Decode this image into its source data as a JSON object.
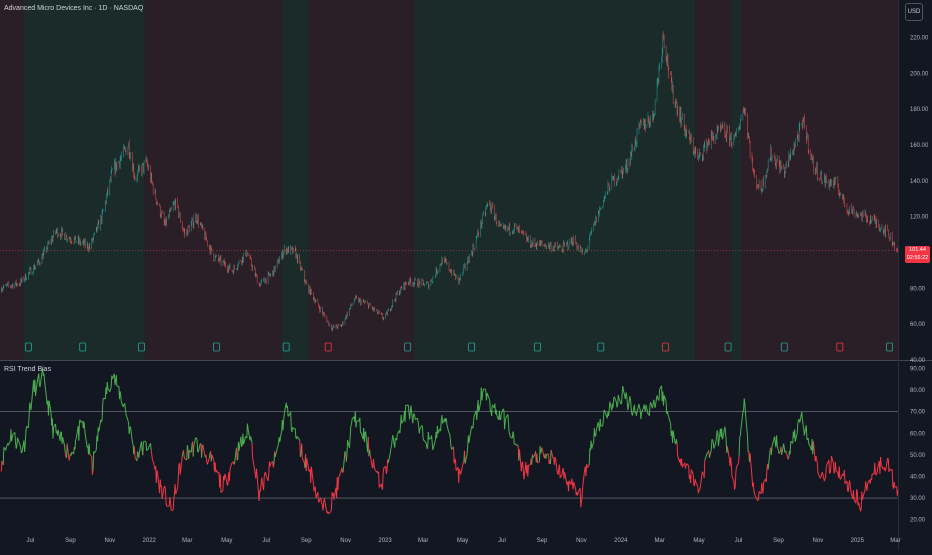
{
  "header": {
    "title": "Advanced Micro Devices Inc · 1D · NASDAQ",
    "currency": "USD"
  },
  "price_tag": {
    "value": "101.44",
    "countdown": "02:56:22",
    "color": "#f23645"
  },
  "colors": {
    "bull_bg": "#1a2b2a",
    "bear_bg": "#2a1e27",
    "rsi_up": "#4caf50",
    "rsi_down": "#f23645",
    "candle_up": "#26a69a",
    "candle_down": "#ef5350"
  },
  "indicator": {
    "title": "RSI Trend Bias"
  },
  "chart_data": [
    {
      "type": "candlestick",
      "title": "",
      "x_ticks": [
        "Jul",
        "Sep",
        "Nov",
        "2022",
        "Mar",
        "May",
        "Jul",
        "Sep",
        "Nov",
        "2023",
        "Mar",
        "May",
        "Jul",
        "Sep",
        "Nov",
        "2024",
        "Mar",
        "May",
        "Jul",
        "Sep",
        "Nov",
        "2025",
        "Mar"
      ],
      "y_ticks": [
        40,
        60,
        80,
        100,
        120,
        140,
        160,
        180,
        200,
        220
      ],
      "ylim": [
        40,
        232
      ],
      "x_range": [
        "2021-05-15",
        "2025-03-05"
      ],
      "anchors": [
        [
          "2021-05-15",
          80
        ],
        [
          "2021-06-15",
          83
        ],
        [
          "2021-07-15",
          95
        ],
        [
          "2021-08-10",
          112
        ],
        [
          "2021-09-01",
          108
        ],
        [
          "2021-10-01",
          103
        ],
        [
          "2021-10-20",
          120
        ],
        [
          "2021-11-05",
          145
        ],
        [
          "2021-11-30",
          160
        ],
        [
          "2021-12-10",
          142
        ],
        [
          "2021-12-28",
          150
        ],
        [
          "2022-01-10",
          132
        ],
        [
          "2022-01-25",
          115
        ],
        [
          "2022-02-10",
          128
        ],
        [
          "2022-02-25",
          110
        ],
        [
          "2022-03-15",
          120
        ],
        [
          "2022-04-10",
          98
        ],
        [
          "2022-05-10",
          90
        ],
        [
          "2022-06-01",
          100
        ],
        [
          "2022-06-20",
          82
        ],
        [
          "2022-07-10",
          88
        ],
        [
          "2022-07-30",
          102
        ],
        [
          "2022-08-15",
          100
        ],
        [
          "2022-09-01",
          82
        ],
        [
          "2022-09-25",
          67
        ],
        [
          "2022-10-10",
          58
        ],
        [
          "2022-10-25",
          59
        ],
        [
          "2022-11-15",
          74
        ],
        [
          "2022-12-05",
          71
        ],
        [
          "2022-12-31",
          63
        ],
        [
          "2023-01-20",
          77
        ],
        [
          "2023-02-05",
          84
        ],
        [
          "2023-03-10",
          82
        ],
        [
          "2023-03-31",
          96
        ],
        [
          "2023-04-25",
          84
        ],
        [
          "2023-05-15",
          100
        ],
        [
          "2023-06-10",
          128
        ],
        [
          "2023-06-30",
          112
        ],
        [
          "2023-07-20",
          114
        ],
        [
          "2023-08-15",
          105
        ],
        [
          "2023-09-10",
          104
        ],
        [
          "2023-10-01",
          102
        ],
        [
          "2023-10-20",
          107
        ],
        [
          "2023-11-05",
          98
        ],
        [
          "2023-11-25",
          120
        ],
        [
          "2023-12-15",
          138
        ],
        [
          "2024-01-10",
          148
        ],
        [
          "2024-01-31",
          170
        ],
        [
          "2024-02-20",
          176
        ],
        [
          "2024-03-07",
          222
        ],
        [
          "2024-03-20",
          190
        ],
        [
          "2024-04-10",
          168
        ],
        [
          "2024-04-30",
          152
        ],
        [
          "2024-05-15",
          162
        ],
        [
          "2024-06-05",
          168
        ],
        [
          "2024-06-25",
          162
        ],
        [
          "2024-07-10",
          182
        ],
        [
          "2024-07-25",
          142
        ],
        [
          "2024-08-05",
          135
        ],
        [
          "2024-08-20",
          155
        ],
        [
          "2024-09-10",
          145
        ],
        [
          "2024-10-01",
          165
        ],
        [
          "2024-10-10",
          172
        ],
        [
          "2024-10-25",
          148
        ],
        [
          "2024-11-10",
          140
        ],
        [
          "2024-11-30",
          138
        ],
        [
          "2024-12-15",
          125
        ],
        [
          "2025-01-05",
          121
        ],
        [
          "2025-01-25",
          118
        ],
        [
          "2025-02-15",
          112
        ],
        [
          "2025-03-05",
          101
        ]
      ],
      "backgrounds": [
        [
          "2021-05-15",
          "2021-06-20",
          "bear"
        ],
        [
          "2021-06-20",
          "2021-12-25",
          "bull"
        ],
        [
          "2021-12-25",
          "2022-07-25",
          "bear"
        ],
        [
          "2022-07-25",
          "2022-09-05",
          "bull"
        ],
        [
          "2022-09-05",
          "2023-02-15",
          "bear"
        ],
        [
          "2023-02-15",
          "2024-04-25",
          "bull"
        ],
        [
          "2024-04-25",
          "2024-06-20",
          "bear"
        ],
        [
          "2024-06-20",
          "2024-07-05",
          "bull"
        ],
        [
          "2024-07-05",
          "2025-03-05",
          "bear"
        ]
      ],
      "markers": [
        [
          "2021-06-28",
          "bull"
        ],
        [
          "2021-09-20",
          "bull"
        ],
        [
          "2021-12-20",
          "bull"
        ],
        [
          "2022-04-15",
          "bull"
        ],
        [
          "2022-08-01",
          "bull"
        ],
        [
          "2022-10-05",
          "bear"
        ],
        [
          "2023-02-05",
          "bull"
        ],
        [
          "2023-05-15",
          "bull"
        ],
        [
          "2023-08-25",
          "bull"
        ],
        [
          "2023-12-01",
          "bull"
        ],
        [
          "2024-03-10",
          "bear"
        ],
        [
          "2024-06-15",
          "bull"
        ],
        [
          "2024-09-10",
          "bull"
        ],
        [
          "2024-12-05",
          "bear"
        ],
        [
          "2025-02-20",
          "bull"
        ]
      ]
    },
    {
      "type": "line",
      "title": "RSI Trend Bias",
      "y_ticks": [
        20,
        30,
        40,
        50,
        60,
        70,
        80,
        90
      ],
      "ylim": [
        18,
        93
      ],
      "levels": [
        30,
        70
      ],
      "anchors": [
        [
          "2021-05-15",
          45
        ],
        [
          "2021-06-01",
          60
        ],
        [
          "2021-06-20",
          52
        ],
        [
          "2021-07-05",
          80
        ],
        [
          "2021-07-20",
          86
        ],
        [
          "2021-08-05",
          62
        ],
        [
          "2021-09-01",
          50
        ],
        [
          "2021-09-20",
          65
        ],
        [
          "2021-10-05",
          44
        ],
        [
          "2021-10-25",
          78
        ],
        [
          "2021-11-05",
          87
        ],
        [
          "2021-11-25",
          72
        ],
        [
          "2021-12-10",
          50
        ],
        [
          "2021-12-31",
          55
        ],
        [
          "2022-01-15",
          38
        ],
        [
          "2022-02-05",
          24
        ],
        [
          "2022-02-20",
          48
        ],
        [
          "2022-03-15",
          55
        ],
        [
          "2022-04-05",
          48
        ],
        [
          "2022-04-25",
          35
        ],
        [
          "2022-05-15",
          50
        ],
        [
          "2022-06-05",
          62
        ],
        [
          "2022-06-20",
          33
        ],
        [
          "2022-07-15",
          48
        ],
        [
          "2022-08-01",
          72
        ],
        [
          "2022-08-20",
          55
        ],
        [
          "2022-09-10",
          40
        ],
        [
          "2022-09-25",
          25
        ],
        [
          "2022-10-10",
          28
        ],
        [
          "2022-10-25",
          40
        ],
        [
          "2022-11-15",
          68
        ],
        [
          "2022-12-05",
          55
        ],
        [
          "2022-12-25",
          35
        ],
        [
          "2023-01-15",
          57
        ],
        [
          "2023-02-05",
          72
        ],
        [
          "2023-02-25",
          60
        ],
        [
          "2023-03-15",
          55
        ],
        [
          "2023-04-05",
          68
        ],
        [
          "2023-04-25",
          40
        ],
        [
          "2023-05-15",
          60
        ],
        [
          "2023-06-01",
          80
        ],
        [
          "2023-06-15",
          72
        ],
        [
          "2023-07-10",
          65
        ],
        [
          "2023-08-05",
          42
        ],
        [
          "2023-08-25",
          50
        ],
        [
          "2023-09-15",
          48
        ],
        [
          "2023-10-10",
          38
        ],
        [
          "2023-10-31",
          30
        ],
        [
          "2023-11-20",
          60
        ],
        [
          "2023-12-10",
          70
        ],
        [
          "2024-01-05",
          78
        ],
        [
          "2024-01-25",
          70
        ],
        [
          "2024-02-15",
          72
        ],
        [
          "2024-03-05",
          79
        ],
        [
          "2024-03-25",
          55
        ],
        [
          "2024-04-10",
          45
        ],
        [
          "2024-04-30",
          34
        ],
        [
          "2024-05-20",
          55
        ],
        [
          "2024-06-10",
          60
        ],
        [
          "2024-06-25",
          35
        ],
        [
          "2024-07-10",
          72
        ],
        [
          "2024-07-25",
          30
        ],
        [
          "2024-08-10",
          35
        ],
        [
          "2024-08-25",
          56
        ],
        [
          "2024-09-15",
          50
        ],
        [
          "2024-10-05",
          67
        ],
        [
          "2024-10-20",
          58
        ],
        [
          "2024-11-05",
          40
        ],
        [
          "2024-11-25",
          46
        ],
        [
          "2024-12-15",
          38
        ],
        [
          "2025-01-05",
          27
        ],
        [
          "2025-01-25",
          43
        ],
        [
          "2025-02-15",
          47
        ],
        [
          "2025-03-05",
          33
        ]
      ]
    }
  ]
}
